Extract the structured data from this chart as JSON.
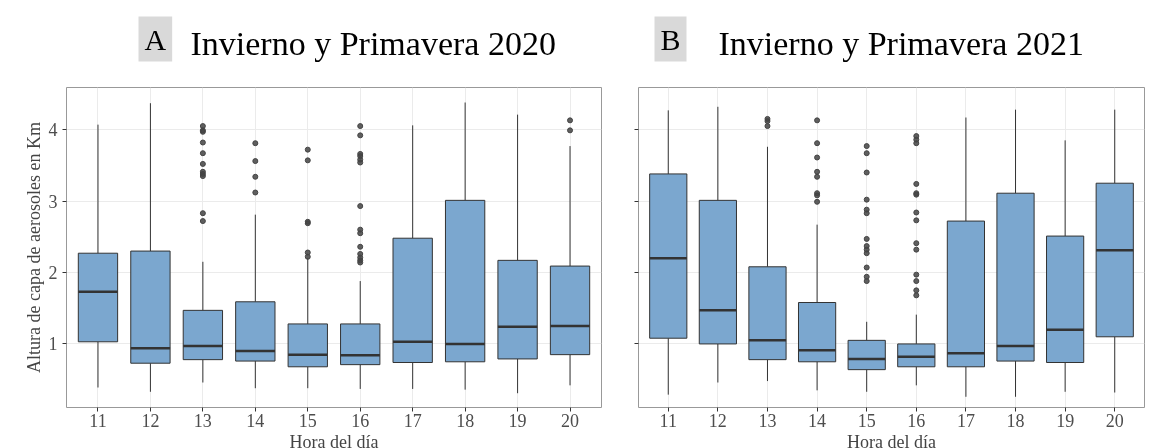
{
  "chart_data": [
    {
      "type": "box",
      "title": "Invierno y Primavera 2020",
      "annotations": [
        "A"
      ],
      "xlabel": "Hora del día",
      "ylabel": "Altura de capa de aerosoles en Km",
      "categories": [
        "11",
        "12",
        "13",
        "14",
        "15",
        "16",
        "17",
        "18",
        "19",
        "20"
      ],
      "color": "#7ba7cf",
      "boxes": [
        {
          "low": 0.39,
          "q1": 1.03,
          "median": 1.73,
          "q3": 2.27,
          "high": 4.07
        },
        {
          "low": 0.33,
          "q1": 0.73,
          "median": 0.94,
          "q3": 2.3,
          "high": 4.37
        },
        {
          "low": 0.46,
          "q1": 0.78,
          "median": 0.97,
          "q3": 1.47,
          "high": 2.15,
          "outliers": [
            4.05,
            3.99,
            3.97,
            3.82,
            3.67,
            3.52,
            3.41,
            3.38,
            3.35,
            2.83,
            2.72
          ]
        },
        {
          "low": 0.38,
          "q1": 0.76,
          "median": 0.9,
          "q3": 1.59,
          "high": 2.81,
          "outliers": [
            3.81,
            3.56,
            3.34,
            3.12
          ]
        },
        {
          "low": 0.38,
          "q1": 0.68,
          "median": 0.85,
          "q3": 1.28,
          "high": 2.2,
          "outliers": [
            3.72,
            3.57,
            2.71,
            2.69,
            2.28,
            2.22
          ]
        },
        {
          "low": 0.37,
          "q1": 0.71,
          "median": 0.84,
          "q3": 1.28,
          "high": 1.88,
          "outliers": [
            4.05,
            3.92,
            3.66,
            3.63,
            3.58,
            3.54,
            2.93,
            2.6,
            2.55,
            2.36,
            2.26,
            2.21,
            2.17,
            2.14
          ]
        },
        {
          "low": 0.37,
          "q1": 0.74,
          "median": 1.03,
          "q3": 2.48,
          "high": 4.06
        },
        {
          "low": 0.36,
          "q1": 0.75,
          "median": 1.0,
          "q3": 3.01,
          "high": 4.38
        },
        {
          "low": 0.31,
          "q1": 0.79,
          "median": 1.24,
          "q3": 2.17,
          "high": 4.21
        },
        {
          "low": 0.42,
          "q1": 0.85,
          "median": 1.25,
          "q3": 2.09,
          "high": 3.77,
          "outliers": [
            4.13,
            3.99
          ]
        }
      ],
      "ylim": [
        0.11,
        4.59
      ],
      "yticks": [
        1,
        2,
        3,
        4
      ],
      "grid": true
    },
    {
      "type": "box",
      "title": "Invierno y Primavera 2021",
      "annotations": [
        "B"
      ],
      "xlabel": "Hora del día",
      "categories": [
        "11",
        "12",
        "13",
        "14",
        "15",
        "16",
        "17",
        "18",
        "19",
        "20"
      ],
      "color": "#7ba7cf",
      "boxes": [
        {
          "low": 0.29,
          "q1": 1.08,
          "median": 2.2,
          "q3": 3.38,
          "high": 4.27
        },
        {
          "low": 0.46,
          "q1": 1.0,
          "median": 1.47,
          "q3": 3.01,
          "high": 4.32
        },
        {
          "low": 0.48,
          "q1": 0.78,
          "median": 1.05,
          "q3": 2.08,
          "high": 3.76,
          "outliers": [
            4.15,
            4.12,
            4.05
          ]
        },
        {
          "low": 0.35,
          "q1": 0.75,
          "median": 0.91,
          "q3": 1.58,
          "high": 2.67,
          "outliers": [
            4.13,
            3.81,
            3.61,
            3.41,
            3.34,
            3.11,
            3.08,
            2.99
          ]
        },
        {
          "low": 0.33,
          "q1": 0.64,
          "median": 0.79,
          "q3": 1.05,
          "high": 1.31,
          "outliers": [
            3.77,
            3.67,
            3.4,
            3.02,
            2.88,
            2.83,
            2.47,
            2.37,
            2.32,
            2.27,
            2.07,
            1.94,
            1.88
          ]
        },
        {
          "low": 0.42,
          "q1": 0.68,
          "median": 0.82,
          "q3": 1.0,
          "high": 1.41,
          "outliers": [
            3.91,
            3.86,
            3.81,
            3.24,
            3.11,
            3.09,
            2.84,
            2.73,
            2.41,
            2.32,
            1.97,
            1.88,
            1.75,
            1.68
          ]
        },
        {
          "low": 0.26,
          "q1": 0.68,
          "median": 0.87,
          "q3": 2.72,
          "high": 4.17
        },
        {
          "low": 0.26,
          "q1": 0.76,
          "median": 0.97,
          "q3": 3.11,
          "high": 4.28
        },
        {
          "low": 0.33,
          "q1": 0.74,
          "median": 1.2,
          "q3": 2.51,
          "high": 3.85
        },
        {
          "low": 0.32,
          "q1": 1.1,
          "median": 2.31,
          "q3": 3.25,
          "high": 4.28
        }
      ],
      "ylim": [
        0.11,
        4.59
      ],
      "yticks": [
        1,
        2,
        3,
        4
      ],
      "grid": true,
      "tick_labels": "x"
    }
  ]
}
